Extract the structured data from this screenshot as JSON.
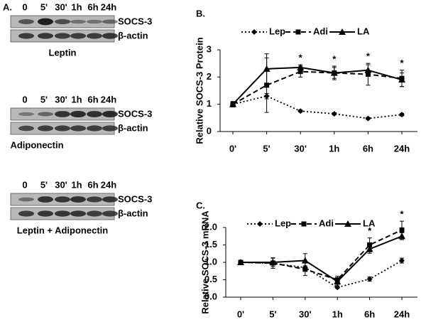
{
  "panel_a": {
    "label": "A.",
    "blots": [
      {
        "lanes": [
          "0",
          "5'",
          "30'",
          "1h",
          "6h",
          "24h"
        ],
        "rows": [
          "SOCS-3",
          "β-actin"
        ],
        "caption": "Leptin"
      },
      {
        "lanes": [
          "0",
          "5'",
          "30'",
          "1h",
          "6h",
          "24h"
        ],
        "rows": [
          "SOCS-3",
          "β-actin"
        ],
        "caption": "Adiponectin"
      },
      {
        "lanes": [
          "0",
          "5'",
          "30'",
          "1h",
          "6h",
          "24h"
        ],
        "rows": [
          "SOCS-3",
          "β-actin"
        ],
        "caption": "Leptin + Adiponectin"
      }
    ]
  },
  "chart_data": [
    {
      "type": "line",
      "label": "B.",
      "y_label": "Relative SOCS-3 Protein",
      "categories": [
        "0'",
        "5'",
        "30'",
        "1h",
        "6h",
        "24h"
      ],
      "ylim": [
        0,
        3
      ],
      "yticks": [
        0,
        1,
        2,
        3
      ],
      "annotations": [
        null,
        null,
        "*",
        "*",
        "*",
        "*"
      ],
      "series": [
        {
          "name": "Lep",
          "color": "#000000",
          "marker": "diamond",
          "dash": "dotted",
          "values": [
            1.0,
            1.3,
            0.75,
            0.65,
            0.48,
            0.62
          ],
          "errors": [
            0.05,
            0.1,
            0.04,
            0.04,
            0.04,
            0.05
          ]
        },
        {
          "name": "Adi",
          "color": "#000000",
          "marker": "square",
          "dash": "dashed",
          "values": [
            1.0,
            1.7,
            2.2,
            2.15,
            2.1,
            1.95
          ],
          "errors": [
            0.1,
            1.0,
            0.2,
            0.2,
            0.4,
            0.3
          ]
        },
        {
          "name": "LA",
          "color": "#000000",
          "marker": "triangle",
          "dash": "solid",
          "values": [
            1.0,
            2.3,
            2.35,
            2.15,
            2.25,
            1.9
          ],
          "errors": [
            0.1,
            0.55,
            0.1,
            0.25,
            0.2,
            0.25
          ]
        }
      ]
    },
    {
      "type": "line",
      "label": "C.",
      "y_label": "Relative SOCS-3 mRNA",
      "categories": [
        "0'",
        "5'",
        "30'",
        "1h",
        "6h",
        "24h"
      ],
      "ylim": [
        0,
        2
      ],
      "yticks": [
        {
          "value": 0,
          "label": "0.0"
        },
        0.5,
        {
          "value": 1,
          "label": "1.0"
        },
        1.5,
        {
          "value": 2,
          "label": "2.0"
        }
      ],
      "annotations": [
        null,
        null,
        null,
        null,
        "*",
        "*"
      ],
      "series": [
        {
          "name": "Lep",
          "color": "#000000",
          "marker": "diamond",
          "dash": "dotted",
          "values": [
            1.0,
            0.97,
            0.85,
            0.28,
            0.52,
            1.05
          ],
          "errors": [
            0.02,
            0.05,
            0.05,
            0.03,
            0.06,
            0.07
          ]
        },
        {
          "name": "Adi",
          "color": "#000000",
          "marker": "square",
          "dash": "dashed",
          "values": [
            1.0,
            0.98,
            0.8,
            0.5,
            1.5,
            1.93
          ],
          "errors": [
            0.02,
            0.15,
            0.18,
            0.1,
            0.2,
            0.25
          ]
        },
        {
          "name": "LA",
          "color": "#000000",
          "marker": "triangle",
          "dash": "solid",
          "values": [
            1.0,
            1.0,
            1.05,
            0.45,
            1.38,
            1.75
          ],
          "errors": [
            0.02,
            0.12,
            0.2,
            0.1,
            0.12,
            0.1
          ]
        }
      ]
    }
  ]
}
